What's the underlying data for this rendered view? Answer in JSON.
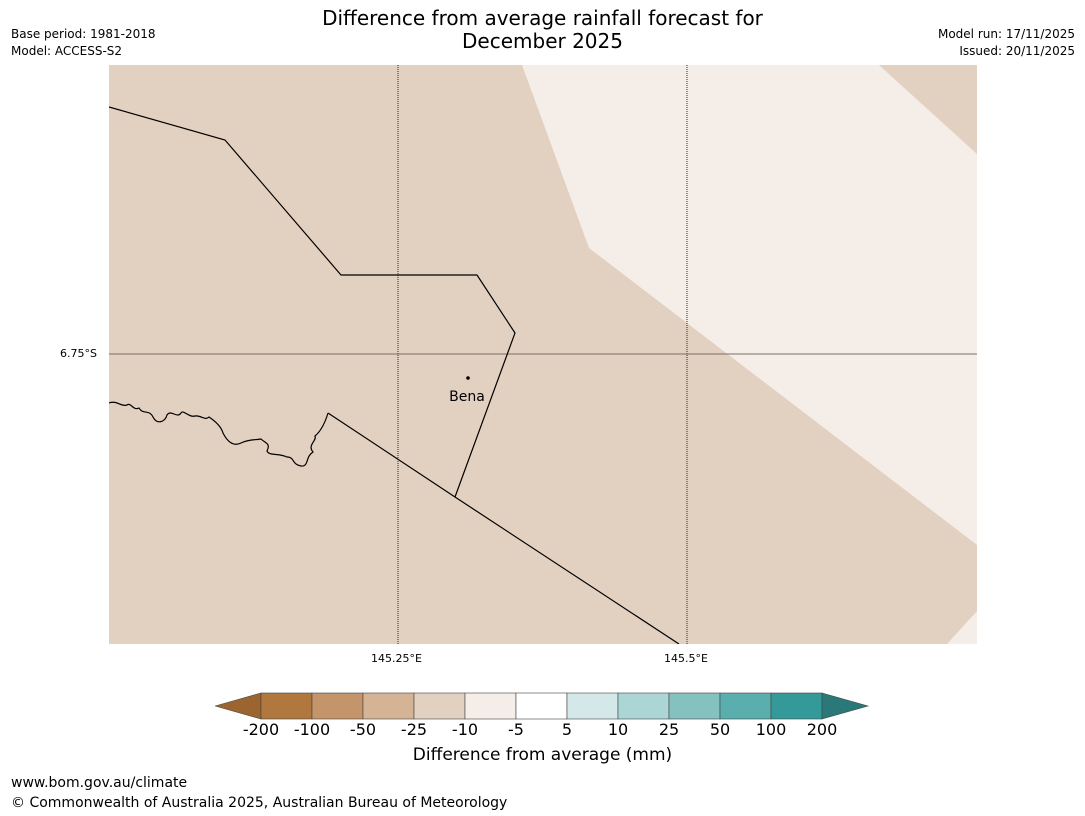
{
  "title_line1": "Difference from average rainfall forecast for",
  "title_line2": "December 2025",
  "meta_left": {
    "base_period": "Base period: 1981-2018",
    "model": "Model: ACCESS-S2"
  },
  "meta_right": {
    "model_run": "Model run: 17/11/2025",
    "issued": "Issued: 20/11/2025"
  },
  "map": {
    "place_label": "Bena",
    "lat_label": "6.75°S",
    "lon_labels": [
      "145.25°E",
      "145.5°E"
    ],
    "colors": {
      "main_fill": "#e2d0c0",
      "light_fill": "#f5ede8",
      "boundary": "#000000",
      "gridline": "#7a6e68"
    }
  },
  "colorbar": {
    "ticks": [
      "-200",
      "-100",
      "-50",
      "-25",
      "-10",
      "-5",
      "5",
      "10",
      "25",
      "50",
      "100",
      "200"
    ],
    "colors": [
      "#9c6530",
      "#b0773e",
      "#c4946a",
      "#d4b494",
      "#e2d0c0",
      "#f5ede8",
      "#ffffff",
      "#d4e8e9",
      "#acd5d5",
      "#84c1bf",
      "#5aaeae",
      "#339a99",
      "#2a7878"
    ],
    "label": "Difference from average (mm)"
  },
  "footer": {
    "url": "www.bom.gov.au/climate",
    "copyright": "© Commonwealth of Australia 2025, Australian Bureau of Meteorology"
  }
}
